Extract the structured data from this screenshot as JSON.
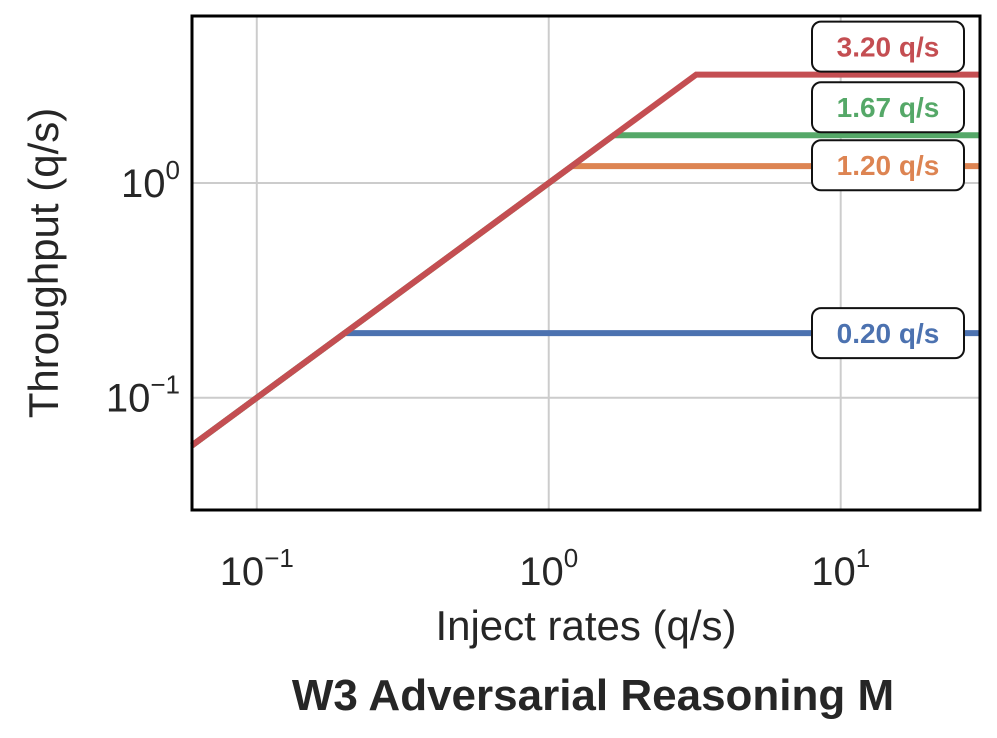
{
  "chart_data": {
    "type": "line",
    "title": "W3 Adversarial Reasoning M",
    "xlabel": "Inject rates (q/s)",
    "ylabel": "Throughput (q/s)",
    "xscale": "log",
    "yscale": "log",
    "xlim": [
      0.06,
      30
    ],
    "ylim": [
      0.03,
      6
    ],
    "grid": true,
    "legend": "none",
    "x_ticks": [
      {
        "value": 0.1,
        "base": "10",
        "exp": "−1"
      },
      {
        "value": 1,
        "base": "10",
        "exp": "0"
      },
      {
        "value": 10,
        "base": "10",
        "exp": "1"
      }
    ],
    "y_ticks": [
      {
        "value": 0.1,
        "base": "10",
        "exp": "−1"
      },
      {
        "value": 1,
        "base": "10",
        "exp": "0"
      }
    ],
    "series": [
      {
        "name": "0.20 q/s",
        "capacity": 0.2,
        "color": "#4c72b0",
        "label": "0.20 q/s"
      },
      {
        "name": "1.20 q/s",
        "capacity": 1.2,
        "color": "#dd8452",
        "label": "1.20 q/s"
      },
      {
        "name": "1.67 q/s",
        "capacity": 1.67,
        "color": "#55a868",
        "label": "1.67 q/s"
      },
      {
        "name": "3.20 q/s",
        "capacity": 3.2,
        "color": "#c44e52",
        "label": "3.20 q/s"
      }
    ]
  }
}
